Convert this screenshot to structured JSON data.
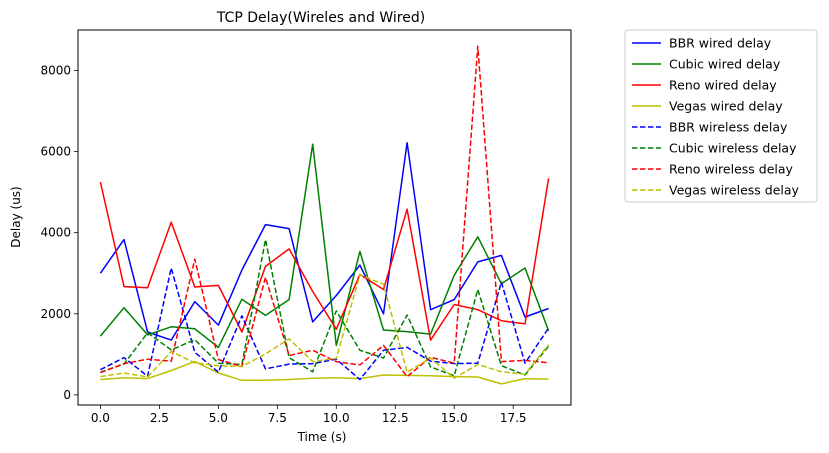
{
  "chart_data": {
    "type": "line",
    "title": "TCP Delay(Wireles and Wired)",
    "xlabel": "Time (s)",
    "ylabel": "Delay (us)",
    "xlim": [
      -0.95,
      19.95
    ],
    "ylim": [
      -250,
      9000
    ],
    "xticks": [
      0,
      2.5,
      5,
      7.5,
      10,
      12.5,
      15,
      17.5
    ],
    "xtick_labels": [
      "0.0",
      "2.5",
      "5.0",
      "7.5",
      "10.0",
      "12.5",
      "15.0",
      "17.5"
    ],
    "yticks": [
      0,
      2000,
      4000,
      6000,
      8000
    ],
    "ytick_labels": [
      "0",
      "2000",
      "4000",
      "6000",
      "8000"
    ],
    "grid": false,
    "legend_position": "outside right, top",
    "x": [
      0,
      1,
      2,
      3,
      4,
      5,
      6,
      7,
      8,
      9,
      10,
      11,
      12,
      13,
      14,
      15,
      16,
      17,
      18,
      19
    ],
    "series": [
      {
        "name": "BBR wired delay",
        "color": "#0000ff",
        "style": "solid",
        "values": [
          3000,
          3830,
          1550,
          1350,
          2300,
          1720,
          3080,
          4200,
          4100,
          1800,
          2450,
          3200,
          2000,
          6220,
          2100,
          2350,
          3280,
          3440,
          1920,
          2130
        ]
      },
      {
        "name": "Cubic wired delay",
        "color": "#008000",
        "style": "solid",
        "values": [
          1450,
          2150,
          1480,
          1680,
          1630,
          1170,
          2360,
          1960,
          2350,
          6180,
          1220,
          3540,
          1600,
          1560,
          1500,
          2950,
          3900,
          2740,
          3130,
          1580
        ]
      },
      {
        "name": "Reno wired delay",
        "color": "#ff0000",
        "style": "solid",
        "values": [
          5250,
          2670,
          2640,
          4260,
          2660,
          2700,
          1550,
          3170,
          3600,
          2550,
          1620,
          2970,
          2600,
          4580,
          1350,
          2230,
          2100,
          1830,
          1750,
          5340
        ]
      },
      {
        "name": "Vegas wired delay",
        "color": "#bfbf00",
        "style": "solid",
        "values": [
          380,
          420,
          400,
          600,
          820,
          540,
          360,
          360,
          380,
          410,
          420,
          400,
          490,
          480,
          470,
          450,
          440,
          270,
          400,
          390
        ]
      },
      {
        "name": "BBR wireless delay",
        "color": "#0000ff",
        "style": "dashed",
        "values": [
          620,
          920,
          460,
          3130,
          1050,
          560,
          1950,
          640,
          760,
          770,
          880,
          380,
          1100,
          1170,
          830,
          770,
          780,
          2780,
          780,
          1650
        ]
      },
      {
        "name": "Cubic wireless delay",
        "color": "#008000",
        "style": "dashed",
        "values": [
          560,
          760,
          1530,
          1110,
          1360,
          780,
          750,
          3830,
          920,
          570,
          2070,
          1100,
          910,
          1970,
          690,
          470,
          2600,
          720,
          490,
          1200
        ]
      },
      {
        "name": "Reno wireless delay",
        "color": "#ff0000",
        "style": "dashed",
        "values": [
          550,
          770,
          880,
          830,
          3350,
          870,
          700,
          2900,
          970,
          1100,
          820,
          740,
          1220,
          450,
          930,
          780,
          8600,
          820,
          850,
          790
        ]
      },
      {
        "name": "Vegas wireless delay",
        "color": "#bfbf00",
        "style": "dashed",
        "values": [
          450,
          540,
          440,
          1070,
          790,
          720,
          700,
          1010,
          1380,
          820,
          900,
          2960,
          2730,
          560,
          910,
          410,
          750,
          570,
          510,
          1240
        ]
      }
    ]
  }
}
